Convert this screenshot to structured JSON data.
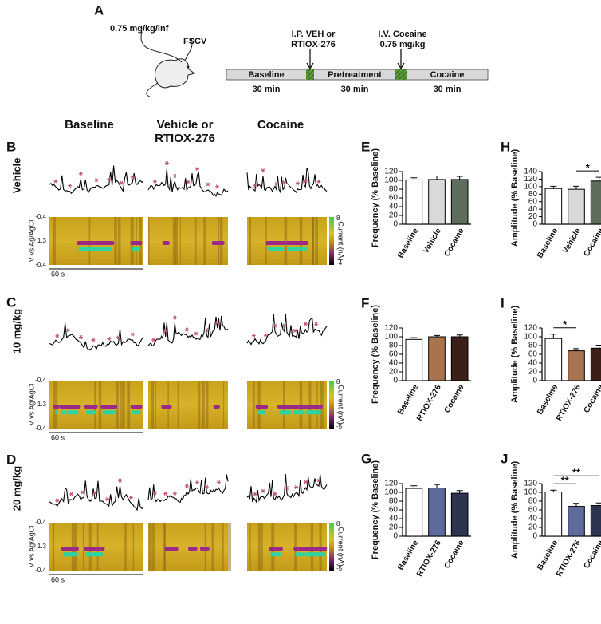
{
  "figure": {
    "panel_a": {
      "letter": "A",
      "dose": "0.75 mg/kg/inf",
      "probe": "FSCV",
      "ip": [
        "I.P. VEH or",
        "RTIOX-276"
      ],
      "iv": [
        "I.V. Cocaine",
        "0.75 mg/kg"
      ],
      "phases": [
        {
          "name": "Baseline",
          "duration": "30 min"
        },
        {
          "name": "Pretreatment",
          "duration": "30 min"
        },
        {
          "name": "Cocaine",
          "duration": "30 min"
        }
      ]
    },
    "columns": [
      [
        "Baseline"
      ],
      [
        "Vehicle or",
        "RTIOX-276"
      ],
      [
        "Cocaine"
      ]
    ],
    "rows": [
      {
        "letter": "B",
        "label": "Vehicle",
        "potential_ticks": [
          "-0.4",
          "1.3",
          "-0.4"
        ],
        "potential_label": "V vs Ag/AgCl",
        "time_scale": "60 s",
        "current_label": "Current (nA)",
        "current_ticks": [
          "8",
          "-4"
        ]
      },
      {
        "letter": "C",
        "label": "10 mg/kg",
        "potential_ticks": [
          "-0.4",
          "1.3",
          "-0.4"
        ],
        "potential_label": "V vs Ag/AgCl",
        "time_scale": "60 s",
        "current_label": "Current (nA)",
        "current_ticks": [
          "8",
          "-5"
        ]
      },
      {
        "letter": "D",
        "label": "20 mg/kg",
        "potential_ticks": [
          "-0.4",
          "1.3",
          "-0.4"
        ],
        "potential_label": "V vs Ag/AgCl",
        "time_scale": "60 s",
        "current_label": "Current (nA)",
        "current_ticks": [
          "8",
          "-5"
        ]
      }
    ]
  },
  "chart_data": [
    {
      "type": "bar",
      "panel": "E",
      "ylabel": "Frequency (% Baseline)",
      "categories": [
        "Baseline",
        "Vehicle",
        "Cocaine"
      ],
      "values": [
        101,
        102,
        102
      ],
      "errors": [
        5,
        8,
        7
      ],
      "colors": [
        "#ffffff",
        "#d9d9d9",
        "#5d6e5c"
      ],
      "ylim": [
        0,
        120
      ],
      "yticks": [
        0,
        20,
        40,
        60,
        80,
        100,
        120
      ],
      "significance": []
    },
    {
      "type": "bar",
      "panel": "H",
      "ylabel": "Amplitude (% Baseline)",
      "categories": [
        "Baseline",
        "Vehicle",
        "Cocaine"
      ],
      "values": [
        95,
        93,
        115
      ],
      "errors": [
        6,
        8,
        10
      ],
      "colors": [
        "#ffffff",
        "#d9d9d9",
        "#5d6e5c"
      ],
      "ylim": [
        0,
        140
      ],
      "yticks": [
        0,
        20,
        40,
        60,
        80,
        100,
        120,
        140
      ],
      "significance": [
        {
          "text": "*",
          "from": "Vehicle",
          "to": "Cocaine"
        }
      ]
    },
    {
      "type": "bar",
      "panel": "F",
      "ylabel": "Frequency (% Baseline)",
      "categories": [
        "Baseline",
        "RTIOX-276",
        "Cocaine"
      ],
      "values": [
        94,
        100,
        100
      ],
      "errors": [
        4,
        3,
        4
      ],
      "colors": [
        "#ffffff",
        "#a8744f",
        "#3d1f1a"
      ],
      "ylim": [
        0,
        120
      ],
      "yticks": [
        0,
        20,
        40,
        60,
        80,
        100,
        120
      ],
      "significance": []
    },
    {
      "type": "bar",
      "panel": "I",
      "ylabel": "Amplitude (% Baseline)",
      "categories": [
        "Baseline",
        "RTIOX-276",
        "Cocaine"
      ],
      "values": [
        96,
        68,
        74
      ],
      "errors": [
        10,
        5,
        7
      ],
      "colors": [
        "#ffffff",
        "#a8744f",
        "#3d1f1a"
      ],
      "ylim": [
        0,
        120
      ],
      "yticks": [
        0,
        20,
        40,
        60,
        80,
        100,
        120
      ],
      "significance": [
        {
          "text": "*",
          "from": "Baseline",
          "to": "RTIOX-276"
        }
      ]
    },
    {
      "type": "bar",
      "panel": "G",
      "ylabel": "Frequency (% Baseline)",
      "categories": [
        "Baseline",
        "RTIOX-276",
        "Cocaine"
      ],
      "values": [
        109,
        110,
        98
      ],
      "errors": [
        6,
        8,
        6
      ],
      "colors": [
        "#ffffff",
        "#5f6b9a",
        "#2c3450"
      ],
      "ylim": [
        0,
        120
      ],
      "yticks": [
        0,
        20,
        40,
        60,
        80,
        100,
        120
      ],
      "significance": []
    },
    {
      "type": "bar",
      "panel": "J",
      "ylabel": "Amplitude (% Baseline)",
      "categories": [
        "Baseline",
        "RTIOX-276",
        "Cocaine"
      ],
      "values": [
        101,
        68,
        70
      ],
      "errors": [
        4,
        7,
        6
      ],
      "colors": [
        "#ffffff",
        "#5f6b9a",
        "#2c3450"
      ],
      "ylim": [
        0,
        120
      ],
      "yticks": [
        0,
        20,
        40,
        60,
        80,
        100,
        120
      ],
      "significance": [
        {
          "text": "**",
          "from": "Baseline",
          "to": "RTIOX-276"
        },
        {
          "text": "**",
          "from": "Baseline",
          "to": "Cocaine"
        }
      ]
    }
  ]
}
